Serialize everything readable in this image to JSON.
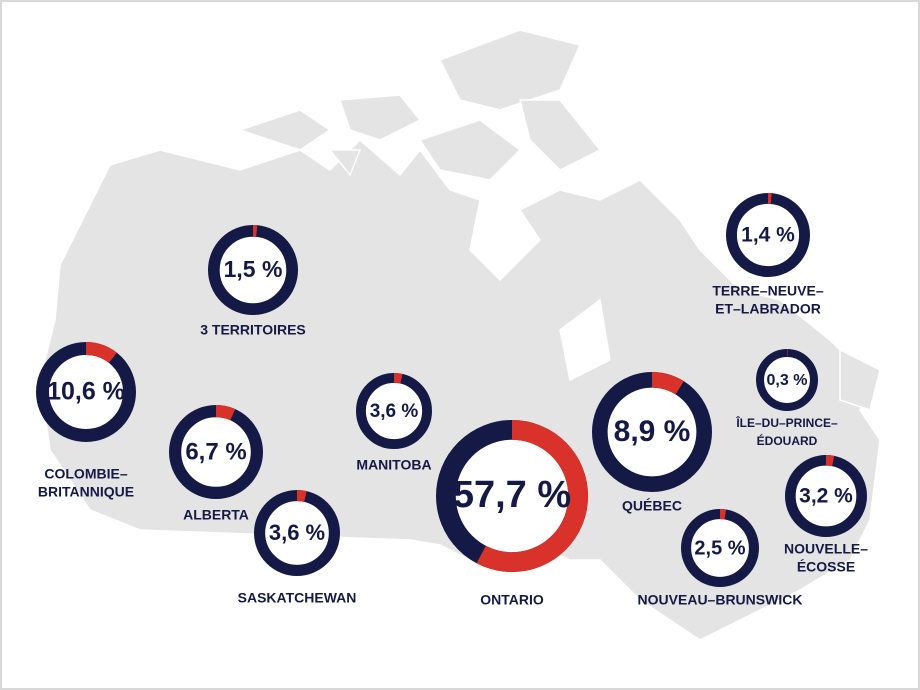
{
  "regions": [
    {
      "name": [
        "3 TERRITOIRES"
      ],
      "value": 1.5,
      "value_label": "1,5 %"
    },
    {
      "name": [
        "COLOMBIE–",
        "BRITANNIQUE"
      ],
      "value": 10.6,
      "value_label": "10,6 %"
    },
    {
      "name": [
        "ALBERTA"
      ],
      "value": 6.7,
      "value_label": "6,7 %"
    },
    {
      "name": [
        "SASKATCHEWAN"
      ],
      "value": 3.6,
      "value_label": "3,6 %"
    },
    {
      "name": [
        "MANITOBA"
      ],
      "value": 3.6,
      "value_label": "3,6 %"
    },
    {
      "name": [
        "ONTARIO"
      ],
      "value": 57.7,
      "value_label": "57,7 %"
    },
    {
      "name": [
        "QUÉBEC"
      ],
      "value": 8.9,
      "value_label": "8,9 %"
    },
    {
      "name": [
        "TERRE–NEUVE–",
        "ET–LABRADOR"
      ],
      "value": 1.4,
      "value_label": "1,4 %"
    },
    {
      "name": [
        "ÎLE–DU–PRINCE–",
        "ÉDOUARD"
      ],
      "value": 0.3,
      "value_label": "0,3 %"
    },
    {
      "name": [
        "NOUVEAU–BRUNSWICK"
      ],
      "value": 2.5,
      "value_label": "2,5 %"
    },
    {
      "name": [
        "NOUVELLE–",
        "ÉCOSSE"
      ],
      "value": 3.2,
      "value_label": "3,2 %"
    }
  ]
}
